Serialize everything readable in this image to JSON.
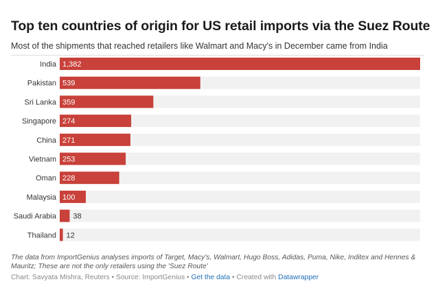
{
  "chart_data": {
    "type": "bar",
    "orientation": "horizontal",
    "title": "Top ten countries of origin for US retail imports via the Suez Route",
    "subtitle": "Most of the shipments that reached retailers like Walmart and Macy's in December came from India",
    "categories": [
      "India",
      "Pakistan",
      "Sri Lanka",
      "Singapore",
      "China",
      "Vietnam",
      "Oman",
      "Malaysia",
      "Saudi Arabia",
      "Thailand"
    ],
    "values": [
      1382,
      539,
      359,
      274,
      271,
      253,
      228,
      100,
      38,
      12
    ],
    "value_labels": [
      "1,382",
      "539",
      "359",
      "274",
      "271",
      "253",
      "228",
      "100",
      "38",
      "12"
    ],
    "xlim": [
      0,
      1382
    ],
    "bar_color": "#c8413a",
    "track_color": "#f1f1f1",
    "label_inside_color": "#ffffff",
    "label_outside_color": "#333333",
    "grid": false,
    "legend": "none"
  },
  "notes": {
    "text": "The data from ImportGenius analyses imports of Target, Macy's, Walmart, Hugo Boss, Adidas, Puma, Nike, Inditex and Hennes & Mauritz; These are not the only retailers using the 'Suez Route'"
  },
  "credits": {
    "prefix": "Chart: Savyata Mishra, Reuters • Source: ImportGenius • ",
    "get_data_label": "Get the data",
    "sep": " • Created with ",
    "datawrapper_label": "Datawrapper"
  }
}
